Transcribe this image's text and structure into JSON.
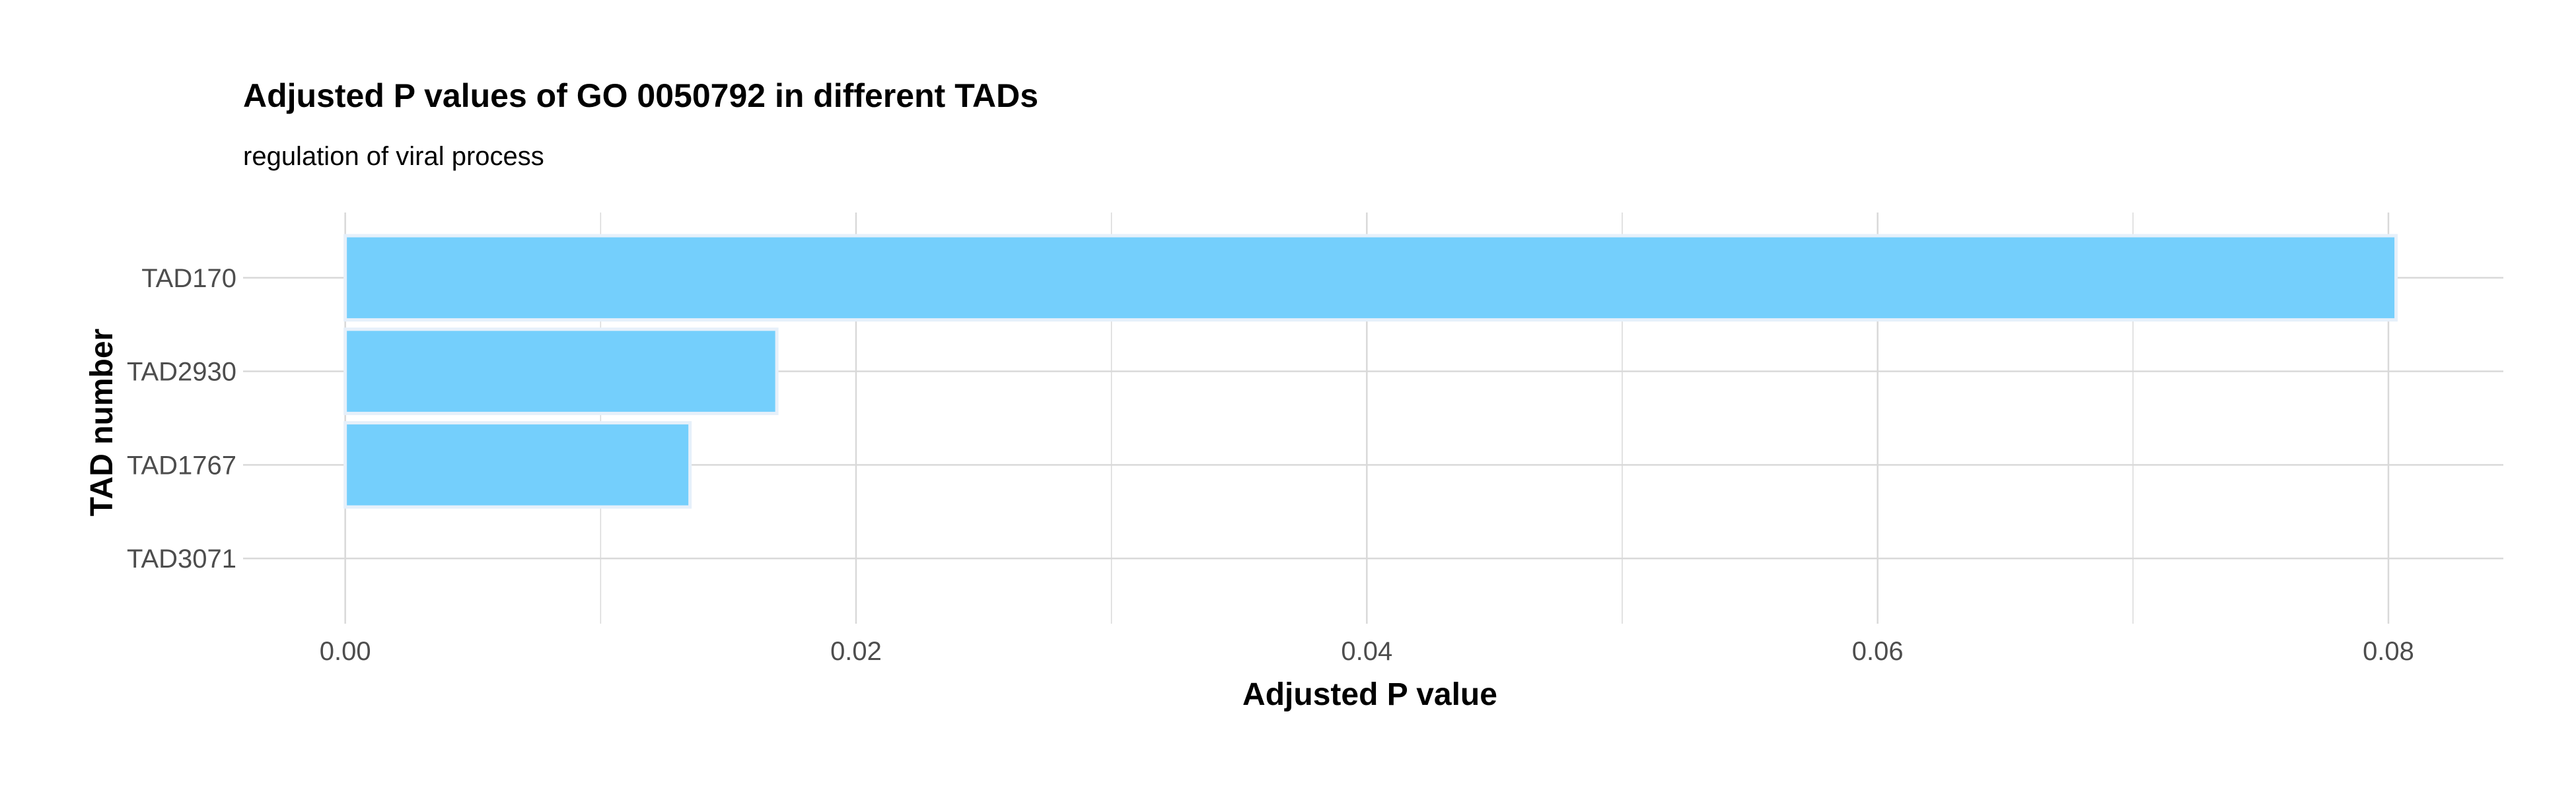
{
  "chart_data": {
    "type": "bar",
    "orientation": "horizontal",
    "title": "Adjusted P values of GO 0050792 in different TADs",
    "subtitle": "regulation of viral process",
    "xlabel": "Adjusted P value",
    "ylabel": "TAD number",
    "categories": [
      "TAD170",
      "TAD2930",
      "TAD1767",
      "TAD3071"
    ],
    "values": [
      0.0803,
      0.0169,
      0.0135,
      0.0
    ],
    "xlim": [
      -0.004,
      0.0845
    ],
    "xticks": [
      0.0,
      0.02,
      0.04,
      0.06,
      0.08
    ],
    "xtick_labels": [
      "0.00",
      "0.02",
      "0.04",
      "0.06",
      "0.08"
    ],
    "grid": true,
    "legend": "none",
    "colors": {
      "bar_fill": "#74cffc",
      "bar_stroke": "#e6f0fa",
      "grid": "#d9d9d9",
      "tick_text": "#4d4d4d"
    }
  }
}
